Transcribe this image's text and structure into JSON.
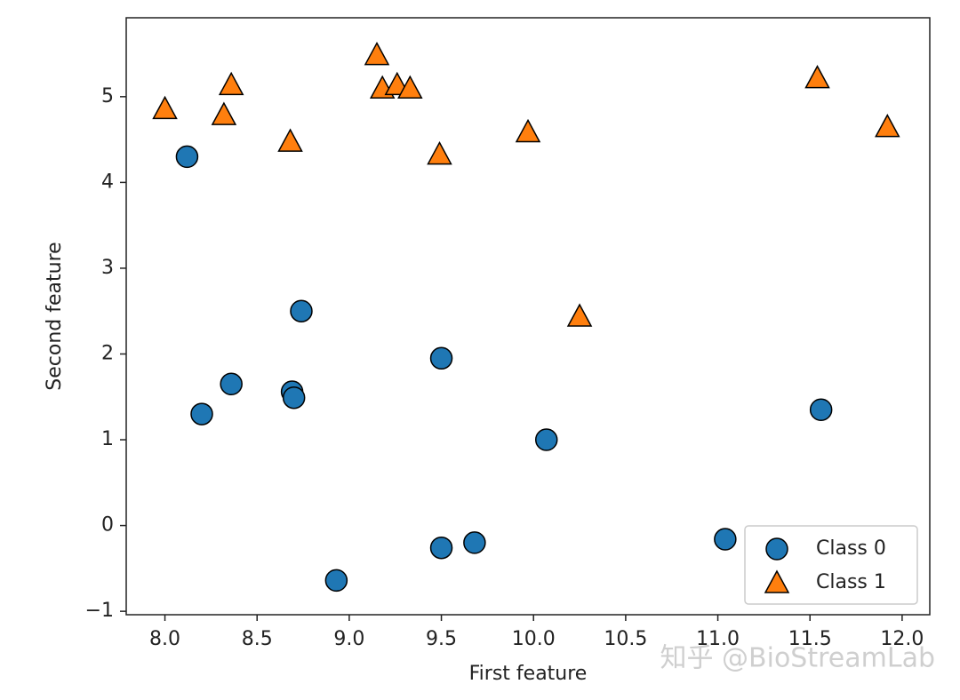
{
  "chart_data": {
    "type": "scatter",
    "xlabel": "First feature",
    "ylabel": "Second feature",
    "xlim": [
      7.79,
      12.15
    ],
    "ylim": [
      -1.04,
      5.92
    ],
    "xticks": [
      {
        "value": 8,
        "label": "8.0"
      },
      8.5,
      {
        "value": 9,
        "label": "9.0"
      },
      9.5,
      {
        "value": 10,
        "label": "10.0"
      },
      10.5,
      {
        "value": 11,
        "label": "11.0"
      },
      11.5,
      {
        "value": 12,
        "label": "12.0"
      }
    ],
    "yticks": [
      {
        "value": -1,
        "label": "−1"
      },
      0,
      1,
      2,
      3,
      4,
      5
    ],
    "grid": false,
    "legend": "lower right",
    "series": [
      {
        "name": "Class 0",
        "color": "#1f77b4",
        "marker": "circle",
        "x": [
          8.12,
          8.2,
          8.36,
          8.69,
          8.7,
          8.74,
          8.93,
          9.5,
          9.5,
          9.68,
          10.07,
          11.04,
          11.56
        ],
        "y": [
          4.3,
          1.3,
          1.65,
          1.56,
          1.49,
          2.5,
          -0.64,
          1.95,
          -0.26,
          -0.2,
          1.0,
          -0.16,
          1.35
        ]
      },
      {
        "name": "Class 1",
        "color": "#ff7f0e",
        "marker": "triangle",
        "x": [
          8.0,
          8.32,
          8.36,
          8.68,
          9.15,
          9.18,
          9.26,
          9.33,
          9.49,
          9.97,
          10.25,
          11.54,
          11.92
        ],
        "y": [
          4.86,
          4.79,
          5.14,
          4.48,
          5.49,
          5.1,
          5.14,
          5.1,
          4.33,
          4.59,
          2.44,
          5.22,
          4.65
        ]
      }
    ]
  },
  "watermark": "知乎 @BioStreamLab"
}
